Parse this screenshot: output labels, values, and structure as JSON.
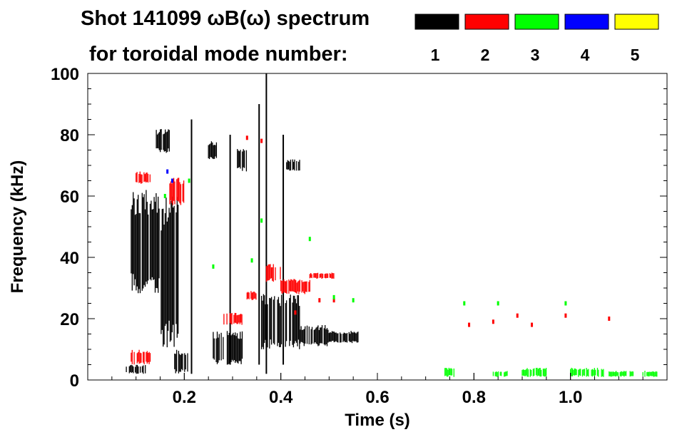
{
  "title_line1": "Shot 141099 ωB(ω) spectrum",
  "title_line2": "for toroidal mode number:",
  "legend": [
    {
      "label": "1",
      "color": "#000000"
    },
    {
      "label": "2",
      "color": "#ff0000"
    },
    {
      "label": "3",
      "color": "#00ff00"
    },
    {
      "label": "4",
      "color": "#0000ff"
    },
    {
      "label": "5",
      "color": "#ffff00"
    }
  ],
  "chart_data": {
    "type": "heatmap",
    "title": "Shot 141099 ωB(ω) spectrum",
    "xlabel": "Time (s)",
    "ylabel": "Frequency (kHz)",
    "xlim": [
      0.0,
      1.2
    ],
    "ylim": [
      0,
      100
    ],
    "x_ticks": [
      "0.2",
      "0.4",
      "0.6",
      "0.8",
      "1.0"
    ],
    "y_ticks": [
      "0",
      "20",
      "40",
      "60",
      "80",
      "100"
    ],
    "series": [
      {
        "name": "1",
        "color": "#000000",
        "regions": [
          {
            "t": [
              0.09,
              0.15
            ],
            "f": [
              28,
              62
            ]
          },
          {
            "t": [
              0.15,
              0.19
            ],
            "f": [
              10,
              60
            ]
          },
          {
            "t": [
              0.14,
              0.17
            ],
            "f": [
              74,
              82
            ]
          },
          {
            "t": [
              0.18,
              0.21
            ],
            "f": [
              2,
              10
            ]
          },
          {
            "t": [
              0.25,
              0.27
            ],
            "f": [
              72,
              78
            ]
          },
          {
            "t": [
              0.26,
              0.32
            ],
            "f": [
              5,
              16
            ]
          },
          {
            "t": [
              0.31,
              0.33
            ],
            "f": [
              68,
              76
            ]
          },
          {
            "t": [
              0.36,
              0.44
            ],
            "f": [
              10,
              28
            ]
          },
          {
            "t": [
              0.44,
              0.5
            ],
            "f": [
              11,
              18
            ]
          },
          {
            "t": [
              0.5,
              0.56
            ],
            "f": [
              12,
              16
            ]
          },
          {
            "t": [
              0.41,
              0.44
            ],
            "f": [
              68,
              72
            ]
          },
          {
            "t": [
              0.08,
              0.12
            ],
            "f": [
              2,
              5
            ]
          }
        ],
        "lines": [
          {
            "t": 0.215,
            "f": [
              2,
              85
            ]
          },
          {
            "t": 0.355,
            "f": [
              5,
              90
            ]
          },
          {
            "t": 0.37,
            "f": [
              2,
              100
            ]
          },
          {
            "t": 0.295,
            "f": [
              5,
              80
            ]
          },
          {
            "t": 0.405,
            "f": [
              5,
              80
            ]
          }
        ]
      },
      {
        "name": "2",
        "color": "#ff0000",
        "regions": [
          {
            "t": [
              0.1,
              0.13
            ],
            "f": [
              64,
              68
            ]
          },
          {
            "t": [
              0.17,
              0.2
            ],
            "f": [
              57,
              66
            ]
          },
          {
            "t": [
              0.37,
              0.4
            ],
            "f": [
              32,
              38
            ]
          },
          {
            "t": [
              0.4,
              0.46
            ],
            "f": [
              28,
              33
            ]
          },
          {
            "t": [
              0.46,
              0.51
            ],
            "f": [
              33,
              35
            ]
          },
          {
            "t": [
              0.33,
              0.35
            ],
            "f": [
              26,
              29
            ]
          },
          {
            "t": [
              0.28,
              0.32
            ],
            "f": [
              18,
              22
            ]
          },
          {
            "t": [
              0.09,
              0.13
            ],
            "f": [
              5,
              10
            ]
          }
        ],
        "points": [
          [
            0.33,
            79
          ],
          [
            0.36,
            78
          ],
          [
            0.48,
            26
          ],
          [
            0.51,
            26
          ],
          [
            0.43,
            22
          ],
          [
            0.79,
            18
          ],
          [
            0.84,
            19
          ],
          [
            0.89,
            21
          ],
          [
            0.92,
            18
          ],
          [
            0.99,
            21
          ],
          [
            1.08,
            20
          ]
        ]
      },
      {
        "name": "3",
        "color": "#00ff00",
        "regions": [
          {
            "t": [
              0.74,
              0.76
            ],
            "f": [
              1,
              4
            ]
          },
          {
            "t": [
              0.84,
              0.87
            ],
            "f": [
              1,
              3
            ]
          },
          {
            "t": [
              0.9,
              0.95
            ],
            "f": [
              1,
              4
            ]
          },
          {
            "t": [
              1.0,
              1.07
            ],
            "f": [
              1,
              4
            ]
          },
          {
            "t": [
              1.08,
              1.13
            ],
            "f": [
              1,
              3
            ]
          },
          {
            "t": [
              1.15,
              1.18
            ],
            "f": [
              1,
              3
            ]
          }
        ],
        "points": [
          [
            0.21,
            65
          ],
          [
            0.26,
            37
          ],
          [
            0.34,
            39
          ],
          [
            0.46,
            46
          ],
          [
            0.36,
            52
          ],
          [
            0.51,
            27
          ],
          [
            0.55,
            26
          ],
          [
            0.85,
            25
          ],
          [
            0.99,
            25
          ],
          [
            0.78,
            25
          ],
          [
            0.16,
            60
          ]
        ]
      },
      {
        "name": "4",
        "color": "#0000ff",
        "points": [
          [
            0.165,
            68
          ],
          [
            0.175,
            65
          ]
        ]
      },
      {
        "name": "5",
        "color": "#ffff00",
        "points": []
      }
    ]
  }
}
